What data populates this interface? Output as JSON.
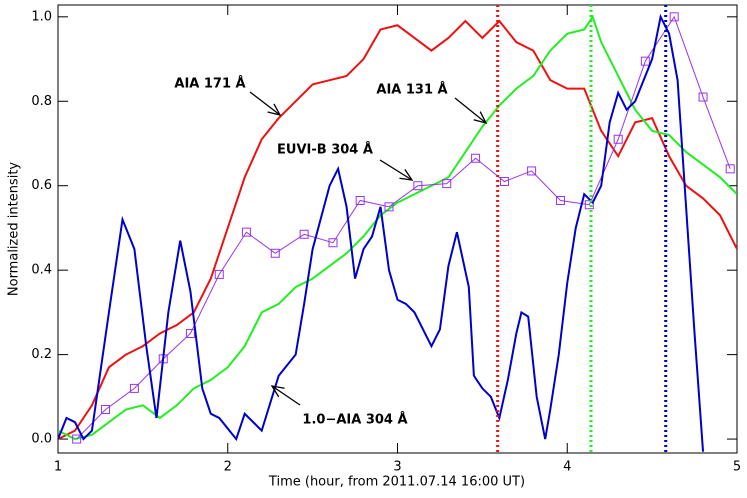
{
  "chart_data": {
    "type": "line",
    "x_label": "Time (hour, from 2011.07.14 16:00 UT)",
    "y_label": "Normalized intensity",
    "xlim": [
      1,
      5
    ],
    "ylim": [
      -0.033,
      1.028
    ],
    "xticks": [
      1,
      2,
      3,
      4,
      5
    ],
    "yticks": [
      {
        "value": 0,
        "label": "0.0"
      },
      0.2,
      0.4,
      0.6,
      0.8,
      {
        "value": 1,
        "label": "1.0"
      }
    ],
    "series": [
      {
        "name": "AIA 171 Å",
        "color": "#ee1111",
        "marker": false,
        "x": [
          1.0,
          1.1,
          1.2,
          1.3,
          1.4,
          1.5,
          1.6,
          1.7,
          1.8,
          1.9,
          2.0,
          2.1,
          2.2,
          2.3,
          2.4,
          2.5,
          2.6,
          2.7,
          2.8,
          2.9,
          3.0,
          3.1,
          3.2,
          3.3,
          3.4,
          3.5,
          3.6,
          3.7,
          3.8,
          3.9,
          4.0,
          4.1,
          4.2,
          4.3,
          4.4,
          4.5,
          4.6,
          4.7,
          4.8,
          4.9,
          5.0
        ],
        "values": [
          0.0,
          0.02,
          0.08,
          0.17,
          0.2,
          0.22,
          0.25,
          0.27,
          0.3,
          0.38,
          0.5,
          0.62,
          0.71,
          0.76,
          0.8,
          0.84,
          0.85,
          0.86,
          0.9,
          0.97,
          0.98,
          0.95,
          0.92,
          0.95,
          0.99,
          0.95,
          0.99,
          0.94,
          0.92,
          0.85,
          0.83,
          0.83,
          0.73,
          0.67,
          0.75,
          0.76,
          0.67,
          0.6,
          0.57,
          0.53,
          0.45
        ]
      },
      {
        "name": "AIA 131 Å",
        "color": "#22ee22",
        "marker": false,
        "x": [
          1.0,
          1.1,
          1.2,
          1.3,
          1.4,
          1.5,
          1.6,
          1.7,
          1.8,
          1.9,
          2.0,
          2.1,
          2.2,
          2.3,
          2.4,
          2.5,
          2.6,
          2.7,
          2.8,
          2.9,
          3.0,
          3.1,
          3.2,
          3.3,
          3.4,
          3.5,
          3.6,
          3.7,
          3.8,
          3.9,
          4.0,
          4.1,
          4.15,
          4.2,
          4.3,
          4.4,
          4.5,
          4.6,
          4.7,
          4.8,
          4.9,
          5.0
        ],
        "values": [
          0.02,
          0.0,
          0.01,
          0.04,
          0.07,
          0.08,
          0.05,
          0.08,
          0.12,
          0.14,
          0.17,
          0.22,
          0.3,
          0.32,
          0.36,
          0.38,
          0.41,
          0.44,
          0.48,
          0.53,
          0.56,
          0.58,
          0.6,
          0.62,
          0.68,
          0.74,
          0.79,
          0.83,
          0.86,
          0.92,
          0.96,
          0.97,
          1.0,
          0.94,
          0.86,
          0.78,
          0.73,
          0.72,
          0.68,
          0.65,
          0.62,
          0.58
        ]
      },
      {
        "name": "EUVI-B 304 Å",
        "color": "#9933ee",
        "marker": true,
        "x": [
          1.11,
          1.28,
          1.45,
          1.62,
          1.78,
          1.95,
          2.11,
          2.28,
          2.45,
          2.62,
          2.78,
          2.95,
          3.12,
          3.29,
          3.46,
          3.63,
          3.79,
          3.96,
          4.13,
          4.3,
          4.46,
          4.63,
          4.8,
          4.96
        ],
        "values": [
          0.0,
          0.07,
          0.12,
          0.19,
          0.25,
          0.39,
          0.49,
          0.44,
          0.485,
          0.465,
          0.565,
          0.55,
          0.6,
          0.605,
          0.665,
          0.61,
          0.635,
          0.565,
          0.555,
          0.71,
          0.895,
          1.0,
          0.81,
          0.64
        ]
      },
      {
        "name": "1.0−AIA 304 Å",
        "color": "#0000cc",
        "marker": false,
        "x": [
          1.0,
          1.05,
          1.1,
          1.15,
          1.2,
          1.3,
          1.38,
          1.45,
          1.52,
          1.58,
          1.65,
          1.72,
          1.78,
          1.85,
          1.9,
          1.95,
          2.05,
          2.1,
          2.2,
          2.3,
          2.4,
          2.45,
          2.5,
          2.6,
          2.65,
          2.7,
          2.75,
          2.8,
          2.85,
          2.9,
          2.95,
          3.0,
          3.05,
          3.1,
          3.2,
          3.25,
          3.3,
          3.35,
          3.42,
          3.45,
          3.5,
          3.55,
          3.6,
          3.65,
          3.7,
          3.73,
          3.77,
          3.82,
          3.87,
          3.9,
          3.95,
          4.0,
          4.05,
          4.1,
          4.15,
          4.2,
          4.25,
          4.3,
          4.35,
          4.4,
          4.5,
          4.55,
          4.6,
          4.65,
          4.7,
          4.75,
          4.8
        ],
        "values": [
          0.0,
          0.05,
          0.04,
          0.0,
          0.02,
          0.3,
          0.52,
          0.45,
          0.22,
          0.05,
          0.3,
          0.47,
          0.35,
          0.12,
          0.06,
          0.05,
          0.0,
          0.06,
          0.02,
          0.15,
          0.2,
          0.32,
          0.45,
          0.6,
          0.64,
          0.55,
          0.38,
          0.45,
          0.48,
          0.55,
          0.4,
          0.33,
          0.32,
          0.3,
          0.22,
          0.26,
          0.41,
          0.49,
          0.36,
          0.15,
          0.12,
          0.1,
          0.05,
          0.14,
          0.25,
          0.3,
          0.29,
          0.1,
          0.0,
          0.07,
          0.2,
          0.37,
          0.5,
          0.58,
          0.56,
          0.6,
          0.75,
          0.82,
          0.78,
          0.8,
          0.9,
          1.0,
          0.96,
          0.85,
          0.55,
          0.25,
          -0.03
        ]
      }
    ],
    "vlines": [
      {
        "x": 3.59,
        "color": "#ee1111"
      },
      {
        "x": 4.14,
        "color": "#22ee22"
      },
      {
        "x": 4.58,
        "color": "#0000cc"
      }
    ],
    "annotations": [
      "AIA 171 Å",
      "AIA 131 Å",
      "EUVI-B 304 Å",
      "1.0−AIA 304 Å"
    ]
  }
}
